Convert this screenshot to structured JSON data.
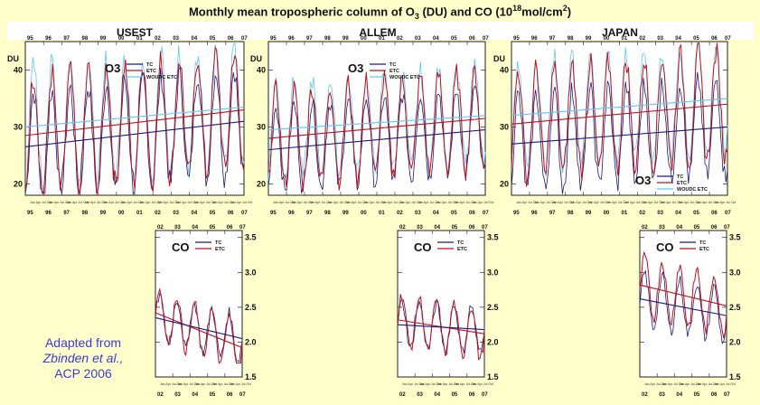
{
  "figure": {
    "title_pre": "Monthly mean tropospheric column of O",
    "title_sub": "3",
    "title_mid": " (DU) and CO (10",
    "title_sup": "18",
    "title_post": "mol/cm",
    "title_sup2": "2",
    "title_end": ")"
  },
  "credit": {
    "line1": "Adapted from",
    "line2": "Zbinden et al.,",
    "line3": "ACP 2006"
  },
  "chart_data": [
    {
      "type": "line",
      "panel": "USEST O3",
      "region": "USEST",
      "species": "O3",
      "unit_label": "DU",
      "x_year_ticks": [
        "95",
        "96",
        "97",
        "98",
        "99",
        "00",
        "01",
        "02",
        "03",
        "04",
        "05",
        "06",
        "07"
      ],
      "x_range": [
        1995.0,
        2007.0
      ],
      "ylim": [
        18,
        45
      ],
      "yticks": [
        20,
        30,
        40
      ],
      "season": {
        "mean": 30.0,
        "amplitude": 10.0,
        "peak_month": 5.5
      },
      "legend_position": "top-center",
      "series": [
        {
          "name": "TC",
          "color": "#1a1a7a"
        },
        {
          "name": "ETC",
          "color": "#c0101a"
        },
        {
          "name": "WOUDC ETC",
          "color": "#5fc8f0"
        }
      ],
      "trends": [
        {
          "series": "ETC",
          "color": "#c0101a",
          "start": 28.5,
          "end": 33.0
        },
        {
          "series": "WOUDC ETC",
          "color": "#5fc8f0",
          "start": 30.0,
          "end": 33.5
        },
        {
          "series": "TC",
          "color": "#1a1a7a",
          "start": 26.5,
          "end": 31.0
        }
      ]
    },
    {
      "type": "line",
      "panel": "ALLEM O3",
      "region": "ALLEM",
      "species": "O3",
      "unit_label": "DU",
      "x_year_ticks": [
        "95",
        "96",
        "97",
        "98",
        "99",
        "00",
        "01",
        "02",
        "03",
        "04",
        "05",
        "06",
        "07"
      ],
      "x_range": [
        1995.0,
        2007.0
      ],
      "ylim": [
        18,
        45
      ],
      "yticks": [
        20,
        30,
        40
      ],
      "season": {
        "mean": 28.5,
        "amplitude": 8.0,
        "peak_month": 5.0
      },
      "legend_position": "top-center",
      "series": [
        {
          "name": "TC",
          "color": "#1a1a7a"
        },
        {
          "name": "ETC",
          "color": "#c0101a"
        },
        {
          "name": "WOUDC ETC",
          "color": "#5fc8f0"
        }
      ],
      "trends": [
        {
          "series": "ETC",
          "color": "#c0101a",
          "start": 28.0,
          "end": 31.5
        },
        {
          "series": "WOUDC ETC",
          "color": "#5fc8f0",
          "start": 29.5,
          "end": 32.0
        },
        {
          "series": "TC",
          "color": "#1a1a7a",
          "start": 26.0,
          "end": 29.5
        }
      ]
    },
    {
      "type": "line",
      "panel": "JAPAN O3",
      "region": "JAPAN",
      "species": "O3",
      "unit_label": "DU",
      "x_year_ticks": [
        "95",
        "96",
        "97",
        "98",
        "99",
        "00",
        "01",
        "02",
        "03",
        "04",
        "05",
        "06",
        "07"
      ],
      "x_range": [
        1995.0,
        2007.0
      ],
      "ylim": [
        18,
        45
      ],
      "yticks": [
        20,
        30,
        40
      ],
      "season": {
        "mean": 31.0,
        "amplitude": 9.0,
        "peak_month": 4.5
      },
      "legend_position": "bottom-right",
      "series": [
        {
          "name": "TC",
          "color": "#1a1a7a"
        },
        {
          "name": "ETC",
          "color": "#c0101a"
        },
        {
          "name": "WOUDC ETC",
          "color": "#5fc8f0"
        }
      ],
      "trends": [
        {
          "series": "ETC",
          "color": "#c0101a",
          "start": 30.5,
          "end": 34.0
        },
        {
          "series": "WOUDC ETC",
          "color": "#5fc8f0",
          "start": 32.0,
          "end": 35.0
        },
        {
          "series": "TC",
          "color": "#1a1a7a",
          "start": 27.0,
          "end": 30.0
        }
      ]
    },
    {
      "type": "line",
      "panel": "USEST CO",
      "region": "USEST",
      "species": "CO",
      "unit_label": "",
      "x_year_ticks": [
        "02",
        "03",
        "04",
        "05",
        "06",
        "07"
      ],
      "x_range": [
        2002.0,
        2007.0
      ],
      "ylim": [
        1.5,
        3.6
      ],
      "yticks": [
        1.5,
        2.0,
        2.5,
        3.0,
        3.5
      ],
      "season": {
        "mean": 2.15,
        "amplitude": 0.35,
        "peak_month": 3.0
      },
      "legend_position": "top-center",
      "series": [
        {
          "name": "TC",
          "color": "#1a1a7a"
        },
        {
          "name": "ETC",
          "color": "#c0101a"
        }
      ],
      "trends": [
        {
          "series": "ETC",
          "color": "#c0101a",
          "start": 2.42,
          "end": 1.92
        },
        {
          "series": "TC",
          "color": "#1a1a7a",
          "start": 2.35,
          "end": 2.05
        }
      ]
    },
    {
      "type": "line",
      "panel": "ALLEM CO",
      "region": "ALLEM",
      "species": "CO",
      "unit_label": "",
      "x_year_ticks": [
        "02",
        "03",
        "04",
        "05",
        "06",
        "07"
      ],
      "x_range": [
        2002.0,
        2007.0
      ],
      "ylim": [
        1.5,
        3.6
      ],
      "yticks": [
        1.5,
        2.0,
        2.5,
        3.0,
        3.5
      ],
      "season": {
        "mean": 2.15,
        "amplitude": 0.35,
        "peak_month": 3.0
      },
      "legend_position": "top-center",
      "series": [
        {
          "name": "TC",
          "color": "#1a1a7a"
        },
        {
          "name": "ETC",
          "color": "#c0101a"
        }
      ],
      "trends": [
        {
          "series": "ETC",
          "color": "#c0101a",
          "start": 2.32,
          "end": 2.12
        },
        {
          "series": "TC",
          "color": "#1a1a7a",
          "start": 2.25,
          "end": 2.18
        }
      ]
    },
    {
      "type": "line",
      "panel": "JAPAN CO",
      "region": "JAPAN",
      "species": "CO",
      "unit_label": "",
      "x_year_ticks": [
        "02",
        "03",
        "04",
        "05",
        "06",
        "07"
      ],
      "x_range": [
        2002.0,
        2007.0
      ],
      "ylim": [
        1.5,
        3.6
      ],
      "yticks": [
        1.5,
        2.0,
        2.5,
        3.0,
        3.5
      ],
      "season": {
        "mean": 2.55,
        "amplitude": 0.4,
        "peak_month": 3.5
      },
      "legend_position": "top-center",
      "series": [
        {
          "name": "TC",
          "color": "#1a1a7a"
        },
        {
          "name": "ETC",
          "color": "#c0101a"
        }
      ],
      "trends": [
        {
          "series": "ETC",
          "color": "#c0101a",
          "start": 2.82,
          "end": 2.52
        },
        {
          "series": "TC",
          "color": "#1a1a7a",
          "start": 2.62,
          "end": 2.38
        }
      ]
    }
  ]
}
